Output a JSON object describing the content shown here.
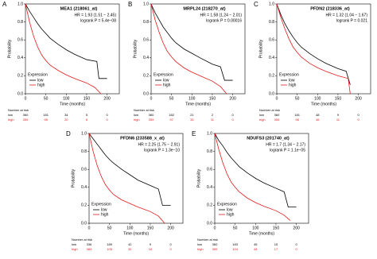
{
  "chart_data": [
    {
      "type": "line",
      "panel": "A",
      "title": "MEA1 (218061_at)",
      "hr": "HR = 1.93 (1.51 − 2.45)",
      "pvalue": "logrank P = 5.4e−08",
      "ylabel": "Probability",
      "xlabel": "Time (months)",
      "legend_title": "Expression",
      "xlim": [
        0,
        230
      ],
      "ylim": [
        0,
        1
      ],
      "xticks": [
        0,
        50,
        100,
        150,
        200
      ],
      "yticks": [
        {
          "value": 0,
          "label": "0.0"
        },
        0.2,
        0.4,
        0.6,
        0.8,
        {
          "value": 1,
          "label": "1.0"
        }
      ],
      "series": [
        {
          "name": "low",
          "color": "#000000",
          "x": [
            0,
            10,
            20,
            30,
            40,
            50,
            60,
            80,
            100,
            120,
            150,
            175,
            180,
            200
          ],
          "values": [
            1,
            0.92,
            0.85,
            0.78,
            0.72,
            0.67,
            0.62,
            0.55,
            0.49,
            0.44,
            0.38,
            0.36,
            0.17,
            0.17
          ]
        },
        {
          "name": "high",
          "color": "#e41a1c",
          "x": [
            0,
            10,
            20,
            30,
            40,
            50,
            60,
            80,
            100,
            120,
            150,
            170,
            185
          ],
          "values": [
            1,
            0.8,
            0.64,
            0.52,
            0.43,
            0.37,
            0.32,
            0.26,
            0.21,
            0.17,
            0.12,
            0.07,
            0
          ]
        }
      ],
      "risk_title": "Number at risk",
      "at_risk": [
        [
          360,
          181,
          34,
          5,
          0
        ],
        [
          359,
          98,
          20,
          8,
          0
        ]
      ]
    },
    {
      "type": "line",
      "panel": "B",
      "title": "MRPL24 (218270_at)",
      "hr": "HR = 1.58 (1.24 − 2.01)",
      "pvalue": "logrank P = 0.00016",
      "ylabel": "Probability",
      "xlabel": "Time (months)",
      "legend_title": "Expression",
      "xlim": [
        0,
        230
      ],
      "ylim": [
        0,
        1
      ],
      "xticks": [
        0,
        50,
        100,
        150,
        200
      ],
      "yticks": [
        {
          "value": 0,
          "label": "0.0"
        },
        0.2,
        0.4,
        0.6,
        0.8,
        {
          "value": 1,
          "label": "1.0"
        }
      ],
      "series": [
        {
          "name": "low",
          "color": "#000000",
          "x": [
            0,
            10,
            20,
            30,
            40,
            50,
            60,
            80,
            100,
            120,
            150,
            170,
            180,
            200
          ],
          "values": [
            1,
            0.9,
            0.82,
            0.74,
            0.68,
            0.62,
            0.57,
            0.5,
            0.45,
            0.4,
            0.33,
            0.3,
            0.15,
            0.15
          ]
        },
        {
          "name": "high",
          "color": "#e41a1c",
          "x": [
            0,
            10,
            20,
            30,
            40,
            50,
            60,
            80,
            100,
            120,
            150,
            170,
            185
          ],
          "values": [
            1,
            0.82,
            0.68,
            0.56,
            0.47,
            0.41,
            0.36,
            0.29,
            0.24,
            0.2,
            0.14,
            0.08,
            0
          ]
        }
      ],
      "risk_title": "Number at risk",
      "at_risk": [
        [
          360,
          182,
          21,
          2,
          0
        ],
        [
          359,
          97,
          33,
          11,
          0
        ]
      ]
    },
    {
      "type": "line",
      "panel": "C",
      "title": "PFDN2 (218336_at)",
      "hr": "HR = 1.32 (1.04 − 1.67)",
      "pvalue": "logrank P = 0.021",
      "ylabel": "Probability",
      "xlabel": "Time (months)",
      "legend_title": "Expression",
      "xlim": [
        0,
        230
      ],
      "ylim": [
        0,
        1
      ],
      "xticks": [
        0,
        50,
        100,
        150,
        200
      ],
      "yticks": [
        {
          "value": 0,
          "label": "0.0"
        },
        0.2,
        0.4,
        0.6,
        0.8,
        {
          "value": 1,
          "label": "1.0"
        }
      ],
      "series": [
        {
          "name": "low",
          "color": "#000000",
          "x": [
            0,
            10,
            20,
            30,
            40,
            50,
            60,
            80,
            100,
            120,
            150,
            170,
            180
          ],
          "values": [
            1,
            0.88,
            0.78,
            0.7,
            0.63,
            0.57,
            0.52,
            0.45,
            0.39,
            0.34,
            0.28,
            0.25,
            0.1
          ]
        },
        {
          "name": "high",
          "color": "#e41a1c",
          "x": [
            0,
            10,
            20,
            30,
            40,
            50,
            60,
            80,
            100,
            120,
            150,
            175,
            180
          ],
          "values": [
            1,
            0.85,
            0.72,
            0.61,
            0.52,
            0.46,
            0.41,
            0.34,
            0.29,
            0.25,
            0.2,
            0.17,
            0
          ]
        }
      ],
      "risk_title": "Number at risk",
      "at_risk": [
        [
          360,
          181,
          48,
          9,
          0
        ],
        [
          359,
          98,
          46,
          11,
          0
        ]
      ]
    },
    {
      "type": "line",
      "panel": "D",
      "title": "PFDN6 (233588_x_at)",
      "hr": "HR = 2.25 (1.75 − 2.91)",
      "pvalue": "logrank P = 1.3e−10",
      "ylabel": "Probability",
      "xlabel": "Time (months)",
      "legend_title": "Expression",
      "xlim": [
        0,
        230
      ],
      "ylim": [
        0,
        1
      ],
      "xticks": [
        0,
        50,
        100,
        150,
        200
      ],
      "yticks": [
        {
          "value": 0,
          "label": "0.0"
        },
        0.2,
        0.4,
        0.6,
        0.8,
        {
          "value": 1,
          "label": "1.0"
        }
      ],
      "series": [
        {
          "name": "low",
          "color": "#000000",
          "x": [
            0,
            10,
            20,
            30,
            40,
            50,
            60,
            80,
            100,
            120,
            150,
            170,
            180,
            200
          ],
          "values": [
            1,
            0.94,
            0.88,
            0.82,
            0.76,
            0.71,
            0.67,
            0.6,
            0.54,
            0.48,
            0.42,
            0.38,
            0.2,
            0.2
          ]
        },
        {
          "name": "high",
          "color": "#e41a1c",
          "x": [
            0,
            10,
            20,
            30,
            40,
            50,
            60,
            80,
            100,
            120,
            150,
            170,
            185
          ],
          "values": [
            1,
            0.8,
            0.64,
            0.52,
            0.43,
            0.37,
            0.32,
            0.26,
            0.22,
            0.18,
            0.13,
            0.08,
            0
          ]
        }
      ],
      "risk_title": "Number at risk",
      "at_risk": [
        [
          336,
          189,
          42,
          9,
          0
        ],
        [
          383,
          105,
          32,
          16,
          0
        ]
      ]
    },
    {
      "type": "line",
      "panel": "E",
      "title": "NDUFS3 (201740_at)",
      "hr": "HR = 1.7 (1.34 − 2.17)",
      "pvalue": "logrank P = 1.1e−05",
      "ylabel": "Probability",
      "xlabel": "Time (months)",
      "legend_title": "Expression",
      "xlim": [
        0,
        230
      ],
      "ylim": [
        0,
        1
      ],
      "xticks": [
        0,
        50,
        100,
        150,
        200
      ],
      "yticks": [
        {
          "value": 0,
          "label": "0.0"
        },
        0.2,
        0.4,
        0.6,
        0.8,
        {
          "value": 1,
          "label": "1.0"
        }
      ],
      "series": [
        {
          "name": "low",
          "color": "#000000",
          "x": [
            0,
            10,
            20,
            30,
            40,
            50,
            60,
            80,
            100,
            120,
            150,
            170,
            180,
            200
          ],
          "values": [
            1,
            0.92,
            0.86,
            0.79,
            0.73,
            0.68,
            0.63,
            0.56,
            0.5,
            0.45,
            0.39,
            0.35,
            0.18,
            0.18
          ]
        },
        {
          "name": "high",
          "color": "#e41a1c",
          "x": [
            0,
            10,
            20,
            30,
            40,
            50,
            60,
            80,
            100,
            120,
            150,
            170,
            185
          ],
          "values": [
            1,
            0.82,
            0.67,
            0.55,
            0.46,
            0.4,
            0.35,
            0.28,
            0.23,
            0.19,
            0.14,
            0.09,
            0.03
          ]
        }
      ],
      "risk_title": "Number at risk",
      "at_risk": [
        [
          360,
          183,
          45,
          15,
          0
        ],
        [
          359,
          104,
          44,
          17,
          0
        ]
      ]
    }
  ]
}
